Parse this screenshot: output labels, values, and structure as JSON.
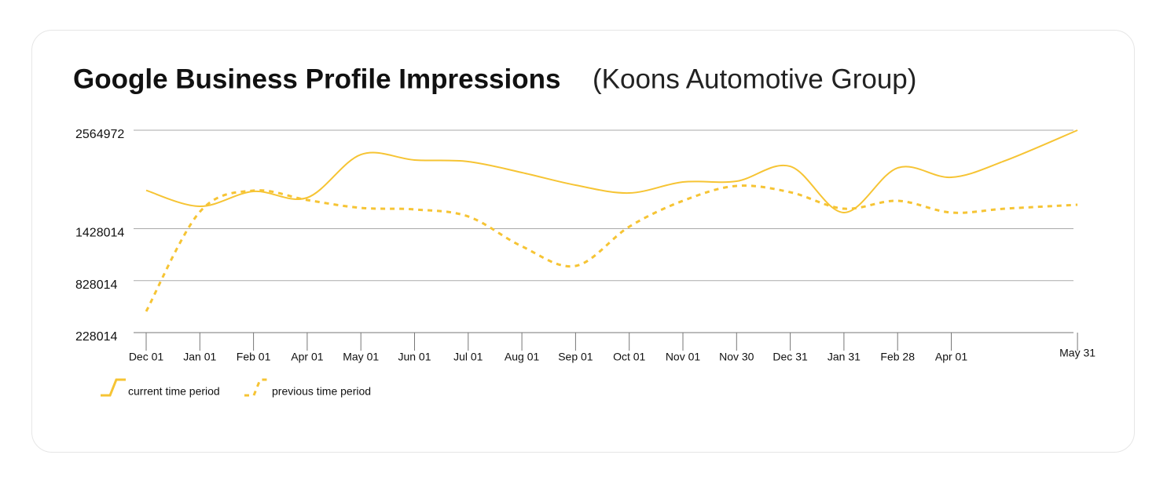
{
  "chart_data": {
    "type": "line",
    "title": "Google Business Profile Impressions",
    "subtitle": "(Koons Automotive Group)",
    "categories": [
      "Dec 01",
      "Jan 01",
      "Feb 01",
      "Apr 01",
      "May 01",
      "Jun 01",
      "Jul 01",
      "Aug 01",
      "Sep 01",
      "Oct 01",
      "Nov 01",
      "Nov 30",
      "Dec 31",
      "Jan 31",
      "Feb 28",
      "Apr 01",
      null,
      "May 31"
    ],
    "series": [
      {
        "name": "current time period",
        "color": "#f6c434",
        "line_style": "solid",
        "values": [
          1870000,
          1686000,
          1858000,
          1786000,
          2284000,
          2221000,
          2203000,
          2076000,
          1931000,
          1840000,
          1967000,
          1976000,
          2148000,
          1614000,
          2130000,
          2021000,
          2212000,
          2564972
        ]
      },
      {
        "name": "previous time period",
        "color": "#f6c434",
        "line_style": "dashed",
        "values": [
          473000,
          1623000,
          1868000,
          1759000,
          1668000,
          1650000,
          1569000,
          1224000,
          998000,
          1451000,
          1750000,
          1922000,
          1849000,
          1659000,
          1750000,
          1614000,
          1659000,
          1704000
        ]
      }
    ],
    "ylim": [
      228014,
      2564972
    ],
    "yticks": [
      228014,
      828014,
      1428014,
      2564972
    ],
    "grid": true
  }
}
